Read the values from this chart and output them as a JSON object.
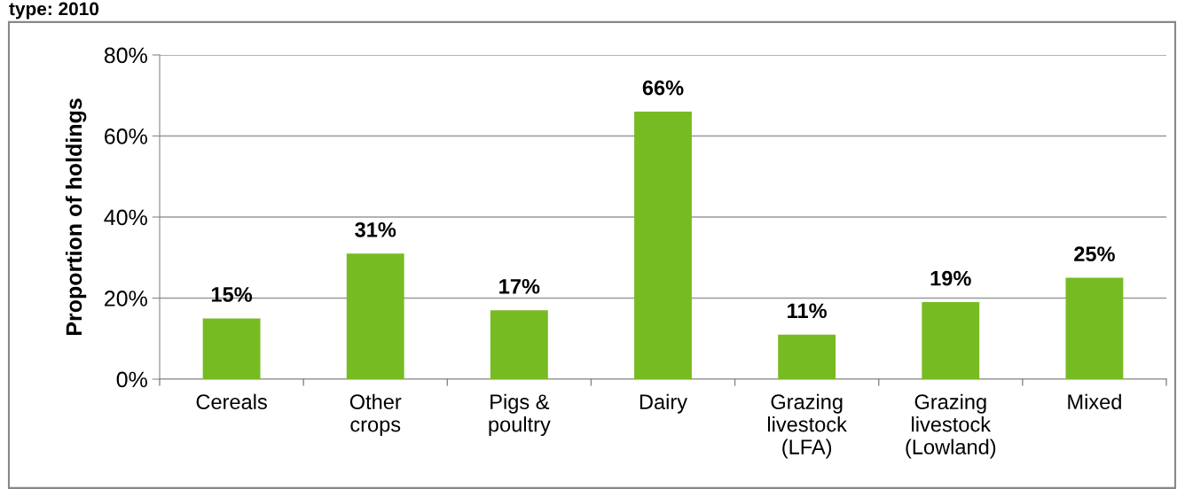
{
  "chart_data": {
    "type": "bar",
    "title": "type: 2010",
    "ylabel": "Proportion of holdings",
    "categories": [
      "Cereals",
      "Other\ncrops",
      "Pigs &\npoultry",
      "Dairy",
      "Grazing\nlivestock\n(LFA)",
      "Grazing\nlivestock\n(Lowland)",
      "Mixed"
    ],
    "values": [
      15,
      31,
      17,
      66,
      11,
      19,
      25
    ],
    "color": "#77bb22",
    "value_labels": [
      "15%",
      "31%",
      "17%",
      "66%",
      "11%",
      "19%",
      "25%"
    ],
    "ylim": [
      0,
      80
    ],
    "yticks": [
      {
        "value": 0,
        "label": "0%"
      },
      {
        "value": 20,
        "label": "20%"
      },
      {
        "value": 40,
        "label": "40%"
      },
      {
        "value": 60,
        "label": "60%"
      },
      {
        "value": 80,
        "label": "80%"
      }
    ],
    "grid": "y"
  }
}
